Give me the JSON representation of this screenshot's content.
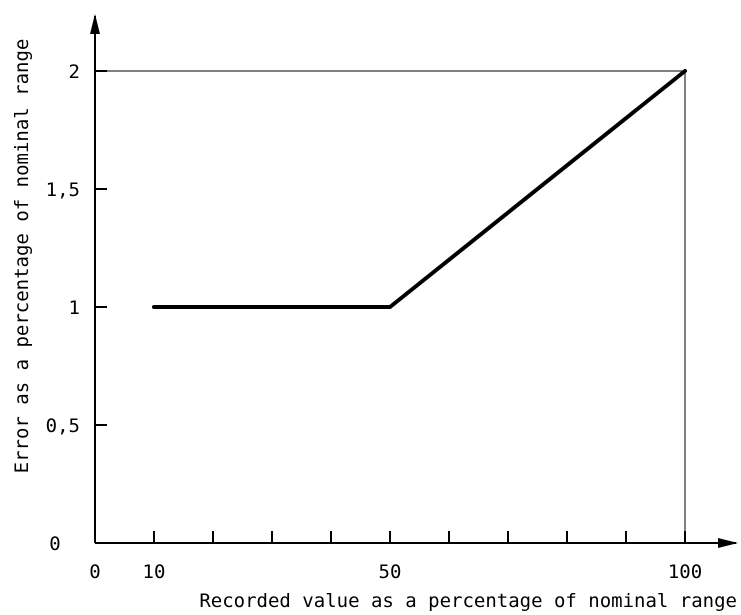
{
  "chart_data": {
    "type": "line",
    "title": "",
    "xlabel": "Recorded value as a percentage of nominal range",
    "ylabel": "Error as a percentage of nominal range",
    "x_origin_label": "0",
    "y_origin_label": "0",
    "xlim": [
      0,
      110
    ],
    "ylim": [
      0,
      2.2
    ],
    "x_minor_ticks": [
      10,
      20,
      30,
      40,
      50,
      60,
      70,
      80,
      90,
      100
    ],
    "x_tick_labels": [
      {
        "value": 10,
        "label": "10"
      },
      {
        "value": 50,
        "label": "50"
      },
      {
        "value": 100,
        "label": "100"
      }
    ],
    "y_tick_labels": [
      {
        "value": 0.5,
        "label": "0,5"
      },
      {
        "value": 1,
        "label": "1"
      },
      {
        "value": 1.5,
        "label": "1,5"
      },
      {
        "value": 2,
        "label": "2"
      }
    ],
    "series": [
      {
        "x": [
          10,
          50,
          100
        ],
        "y": [
          1,
          1,
          2
        ],
        "color": "#000000"
      }
    ],
    "reference_lines": [
      {
        "type": "horizontal",
        "y": 2,
        "x_from": 0,
        "x_to": 100
      },
      {
        "type": "vertical",
        "x": 100,
        "y_from": 0,
        "y_to": 2
      }
    ],
    "grid": false,
    "legend": "none"
  }
}
